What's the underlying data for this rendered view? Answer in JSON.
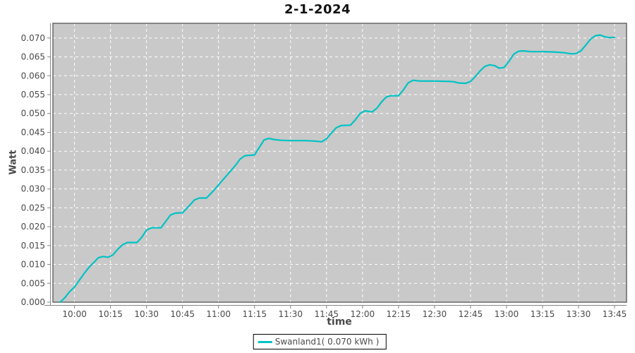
{
  "title": "2-1-2024",
  "colors": {
    "series": "#00C2C4",
    "plot_bg": "#C9C9C9",
    "plot_border": "#5E5E5E",
    "grid": "#FFFFFF",
    "tick_text": "#4A4A4A",
    "axis_line": "#848484",
    "title_text": "#111111",
    "legend_border": "#000000",
    "legend_bg": "#FFFFFF"
  },
  "legend": {
    "position": "bottom-center",
    "label": "Swanland1( 0.070 kWh )"
  },
  "chart_data": {
    "type": "line",
    "title": "2-1-2024",
    "xlabel": "time",
    "ylabel": "Watt",
    "grid": "white dashed gridlines on gray plot background",
    "legend_position": "bottom-center",
    "x_tick_labels": [
      "10:00",
      "10:15",
      "10:30",
      "10:45",
      "11:00",
      "11:15",
      "11:30",
      "11:45",
      "12:00",
      "12:15",
      "12:30",
      "12:45",
      "13:00",
      "13:15",
      "13:30",
      "13:45"
    ],
    "x_tick_minutes": [
      600,
      615,
      630,
      645,
      660,
      675,
      690,
      705,
      720,
      735,
      750,
      765,
      780,
      795,
      810,
      825
    ],
    "y_tick_labels": [
      "0.000",
      "0.005",
      "0.010",
      "0.015",
      "0.020",
      "0.025",
      "0.030",
      "0.035",
      "0.040",
      "0.045",
      "0.050",
      "0.055",
      "0.060",
      "0.065",
      "0.070"
    ],
    "y_tick_values": [
      0,
      0.005,
      0.01,
      0.015,
      0.02,
      0.025,
      0.03,
      0.035,
      0.04,
      0.045,
      0.05,
      0.055,
      0.06,
      0.065,
      0.07
    ],
    "x_range_minutes": [
      591,
      830
    ],
    "ylim": [
      0,
      0.0739
    ],
    "series": [
      {
        "name": "Swanland1( 0.070 kWh )",
        "color": "#00C2C4",
        "points_format": "[minutes_since_midnight, watt]",
        "points": [
          [
            594,
            0.0
          ],
          [
            596,
            0.0012
          ],
          [
            598,
            0.0028
          ],
          [
            600,
            0.004
          ],
          [
            602,
            0.0058
          ],
          [
            604,
            0.0076
          ],
          [
            606,
            0.0092
          ],
          [
            608,
            0.0105
          ],
          [
            610,
            0.0118
          ],
          [
            612,
            0.0121
          ],
          [
            614,
            0.0119
          ],
          [
            616,
            0.0125
          ],
          [
            618,
            0.014
          ],
          [
            620,
            0.0152
          ],
          [
            622,
            0.0158
          ],
          [
            626,
            0.0158
          ],
          [
            628,
            0.0172
          ],
          [
            630,
            0.0191
          ],
          [
            632,
            0.0197
          ],
          [
            636,
            0.0197
          ],
          [
            638,
            0.0214
          ],
          [
            640,
            0.0231
          ],
          [
            642,
            0.0236
          ],
          [
            645,
            0.0237
          ],
          [
            647,
            0.025
          ],
          [
            650,
            0.0271
          ],
          [
            652,
            0.0276
          ],
          [
            655,
            0.0276
          ],
          [
            658,
            0.0296
          ],
          [
            661,
            0.0318
          ],
          [
            664,
            0.034
          ],
          [
            667,
            0.0362
          ],
          [
            669,
            0.0379
          ],
          [
            671,
            0.0388
          ],
          [
            675,
            0.039
          ],
          [
            677,
            0.041
          ],
          [
            679,
            0.043
          ],
          [
            681,
            0.0434
          ],
          [
            683,
            0.0431
          ],
          [
            686,
            0.0429
          ],
          [
            690,
            0.0428
          ],
          [
            696,
            0.0428
          ],
          [
            700,
            0.0427
          ],
          [
            703,
            0.0425
          ],
          [
            705,
            0.0433
          ],
          [
            707,
            0.0448
          ],
          [
            709,
            0.0462
          ],
          [
            711,
            0.0468
          ],
          [
            715,
            0.0469
          ],
          [
            717,
            0.0483
          ],
          [
            719,
            0.05
          ],
          [
            721,
            0.0507
          ],
          [
            724,
            0.0504
          ],
          [
            726,
            0.0514
          ],
          [
            728,
            0.0531
          ],
          [
            730,
            0.0544
          ],
          [
            732,
            0.0547
          ],
          [
            735,
            0.0547
          ],
          [
            737,
            0.0562
          ],
          [
            739,
            0.0581
          ],
          [
            741,
            0.0588
          ],
          [
            744,
            0.0586
          ],
          [
            750,
            0.0586
          ],
          [
            756,
            0.0585
          ],
          [
            758,
            0.0584
          ],
          [
            760,
            0.0581
          ],
          [
            763,
            0.058
          ],
          [
            765,
            0.0585
          ],
          [
            767,
            0.0598
          ],
          [
            769,
            0.0613
          ],
          [
            771,
            0.0625
          ],
          [
            773,
            0.0629
          ],
          [
            775,
            0.0627
          ],
          [
            777,
            0.062
          ],
          [
            779,
            0.0622
          ],
          [
            781,
            0.0638
          ],
          [
            783,
            0.0657
          ],
          [
            785,
            0.0665
          ],
          [
            787,
            0.0666
          ],
          [
            790,
            0.0664
          ],
          [
            795,
            0.0664
          ],
          [
            800,
            0.0663
          ],
          [
            804,
            0.0661
          ],
          [
            807,
            0.0658
          ],
          [
            809,
            0.0659
          ],
          [
            811,
            0.0666
          ],
          [
            813,
            0.0681
          ],
          [
            815,
            0.0697
          ],
          [
            817,
            0.0706
          ],
          [
            819,
            0.0708
          ],
          [
            821,
            0.0703
          ],
          [
            823,
            0.0701
          ],
          [
            825,
            0.0702
          ]
        ]
      }
    ]
  }
}
